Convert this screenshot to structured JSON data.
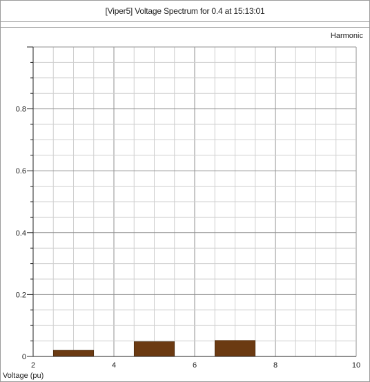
{
  "window": {
    "title": "[Viper5] Voltage Spectrum for 0.4 at 15:13:01"
  },
  "chart_data": {
    "type": "bar",
    "title": "[Viper5] Voltage Spectrum for 0.4 at 15:13:01",
    "top_right_label": "Harmonic",
    "xlabel": "Voltage (pu)",
    "ylabel": "",
    "xlim": [
      2,
      10
    ],
    "ylim": [
      0,
      1.0
    ],
    "x_ticks": [
      2,
      4,
      6,
      8,
      10
    ],
    "y_ticks": [
      0,
      0.2,
      0.4,
      0.6,
      0.8
    ],
    "bars": [
      {
        "x": 3,
        "width": 1,
        "value": 0.02
      },
      {
        "x": 5,
        "width": 1,
        "value": 0.048
      },
      {
        "x": 7,
        "width": 1,
        "value": 0.052
      }
    ],
    "bar_color": "#6b3a12",
    "grid": true,
    "legend": "none"
  }
}
